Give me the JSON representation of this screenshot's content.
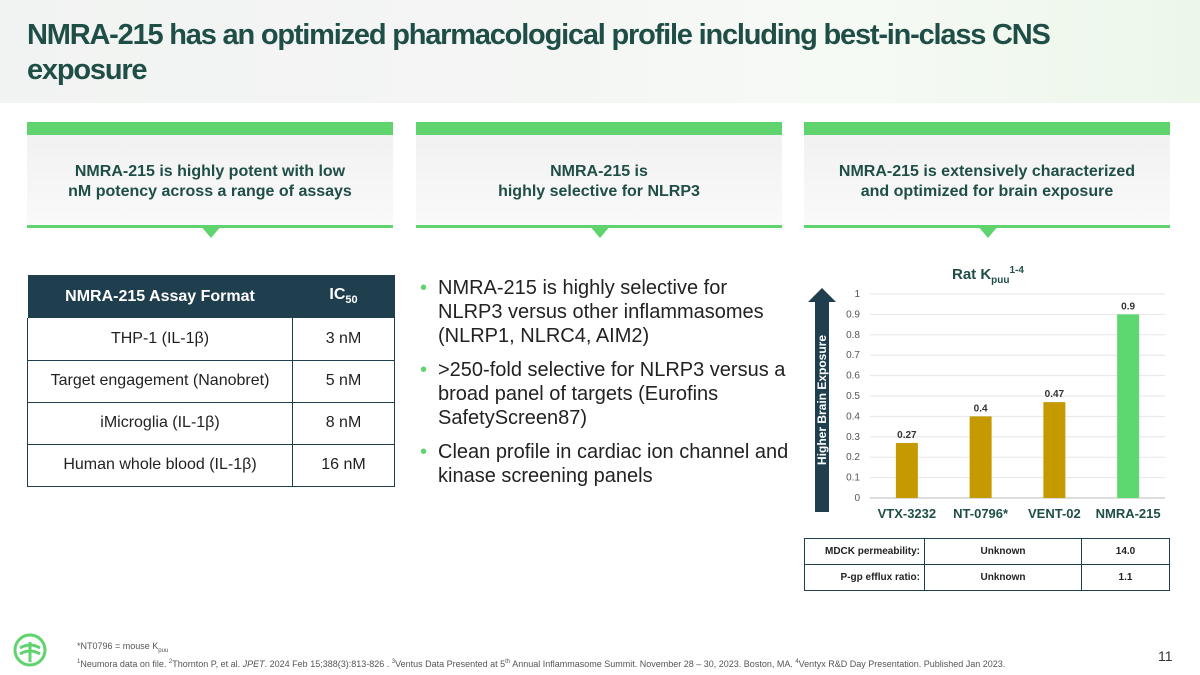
{
  "title": "NMRA-215 has an optimized pharmacological profile including best-in-class CNS exposure",
  "columns": [
    {
      "line1": "NMRA-215 is highly potent with low",
      "line2": "nM potency across a range of assays"
    },
    {
      "line1": "NMRA-215 is",
      "line2": "highly selective for NLRP3"
    },
    {
      "line1": "NMRA-215 is extensively characterized",
      "line2": "and optimized for brain exposure"
    }
  ],
  "assay_table": {
    "header_col1": "NMRA-215 Assay Format",
    "header_col2_main": "IC",
    "header_col2_sub": "50",
    "rows": [
      {
        "format": "THP-1 (IL-1β)",
        "ic50": "3 nM"
      },
      {
        "format": "Target engagement (Nanobret)",
        "ic50": "5 nM"
      },
      {
        "format": "iMicroglia (IL-1β)",
        "ic50": "8 nM"
      },
      {
        "format": "Human whole blood (IL-1β)",
        "ic50": "16 nM"
      }
    ]
  },
  "bullets": [
    "NMRA-215 is highly selective for NLRP3 versus other inflammasomes (NLRP1, NLRC4, AIM2)",
    ">250-fold selective for NLRP3 versus a broad panel of targets (Eurofins SafetyScreen87)",
    "Clean profile in cardiac ion channel and kinase screening panels"
  ],
  "bullet_glyph": "•",
  "chart_title": {
    "main": "Rat K",
    "sub": "puu",
    "sup": "1-4"
  },
  "chart_ylabel": "Higher Brain Exposure",
  "chart_data": {
    "type": "bar",
    "title": "Rat Kpuu 1-4",
    "categories": [
      "VTX-3232",
      "NT-0796*",
      "VENT-02",
      "NMRA-215"
    ],
    "values": [
      0.27,
      0.4,
      0.47,
      0.9
    ],
    "value_labels": [
      "0.27",
      "0.4",
      "0.47",
      "0.9"
    ],
    "colors": [
      "#c49a00",
      "#c49a00",
      "#c49a00",
      "#5dd870"
    ],
    "ylim": [
      0,
      1
    ],
    "yticks": [
      "0",
      "0.1",
      "0.2",
      "0.3",
      "0.4",
      "0.5",
      "0.6",
      "0.7",
      "0.8",
      "0.9",
      "1"
    ],
    "ylabel": "Higher Brain Exposure",
    "grid": true
  },
  "props_table": {
    "rows": [
      {
        "label": "MDCK permeability:",
        "v1": "Unknown",
        "v2": "14.0"
      },
      {
        "label": "P-gp efflux ratio:",
        "v1": "Unknown",
        "v2": "1.1"
      }
    ]
  },
  "footnote": {
    "line1_main": "*NT0796 = mouse K",
    "line1_sub": "puu",
    "line2_a": "Neumora data on file. ",
    "line2_b": "Thornton P, et al. ",
    "line2_journal": "JPET",
    "line2_c": ". 2024 Feb 15;388(3):813-826 . ",
    "line2_d": "Ventus Data Presented at 5",
    "line2_th": "th",
    "line2_e": " Annual Inflammasome Summit. November 28 – 30, 2023. Boston, MA. ",
    "line2_f": "Ventyx R&D Day Presentation. Published Jan 2023.",
    "sup1": "1",
    "sup2": "2",
    "sup3": "3",
    "sup4": "4"
  },
  "page_number": "11",
  "colors": {
    "brand_dark": "#1f4e47",
    "accent_green": "#5fd46e",
    "gold": "#c49a00",
    "table_dark": "#1f3f4e"
  }
}
